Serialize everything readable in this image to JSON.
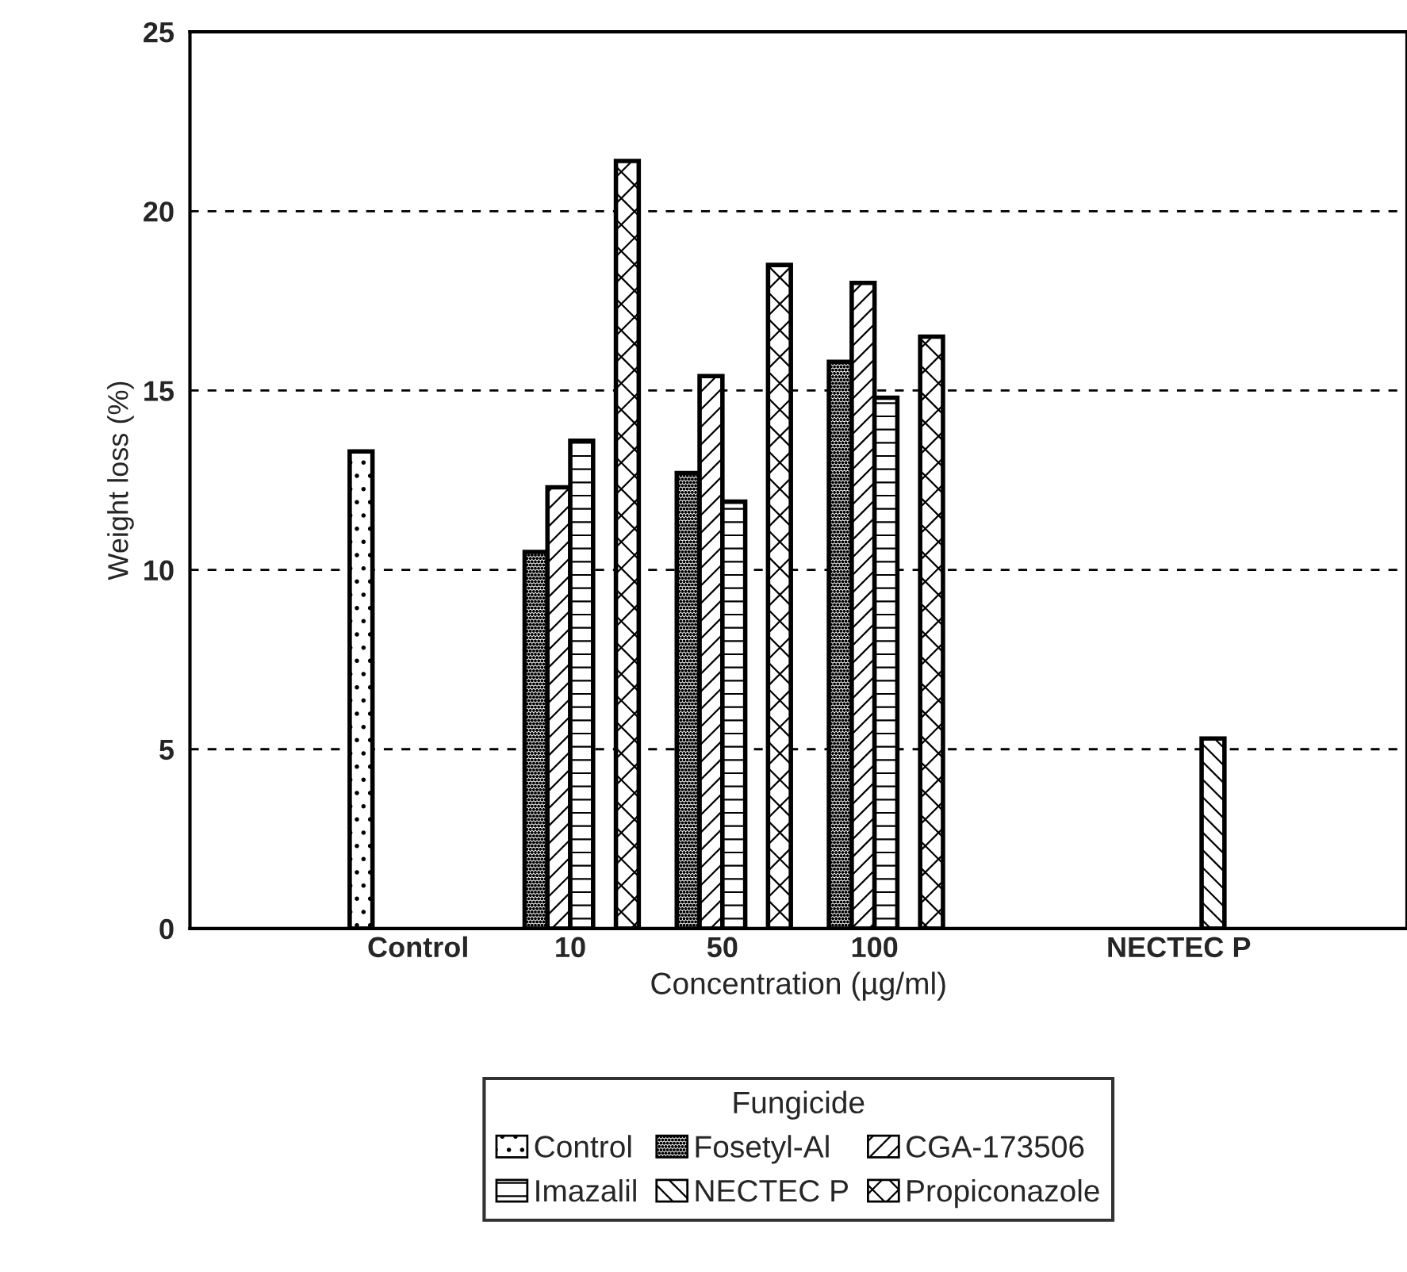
{
  "chart_data": {
    "type": "bar",
    "xlabel": "Concentration (µg/ml)",
    "ylabel": "Weight loss (%)",
    "legend_title": "Fungicide",
    "categories": [
      null,
      "Control",
      "10",
      "50",
      "100",
      null,
      "NECTEC P",
      null
    ],
    "series": [
      {
        "name": "Control",
        "color": "#000000",
        "values": [
          null,
          13.3,
          null,
          null,
          null,
          null,
          null,
          null
        ]
      },
      {
        "name": "Fosetyl-Al",
        "color": "#000000",
        "values": [
          null,
          null,
          10.5,
          12.7,
          15.8,
          null,
          null,
          null
        ]
      },
      {
        "name": "CGA-173506",
        "color": "#000000",
        "values": [
          null,
          null,
          12.3,
          15.4,
          18.0,
          null,
          null,
          null
        ]
      },
      {
        "name": "Imazalil",
        "color": "#000000",
        "values": [
          null,
          null,
          13.6,
          11.9,
          14.8,
          null,
          null,
          null
        ]
      },
      {
        "name": "NECTEC P",
        "color": "#000000",
        "values": [
          null,
          null,
          null,
          null,
          null,
          null,
          5.3,
          null
        ]
      },
      {
        "name": "Propiconazole",
        "color": "#000000",
        "values": [
          null,
          null,
          21.4,
          18.5,
          16.5,
          null,
          null,
          null
        ]
      }
    ],
    "ylim": [
      0,
      25
    ],
    "yticks": [
      0,
      5,
      10,
      15,
      20,
      25
    ],
    "grid": "y",
    "legend": "bottom"
  }
}
